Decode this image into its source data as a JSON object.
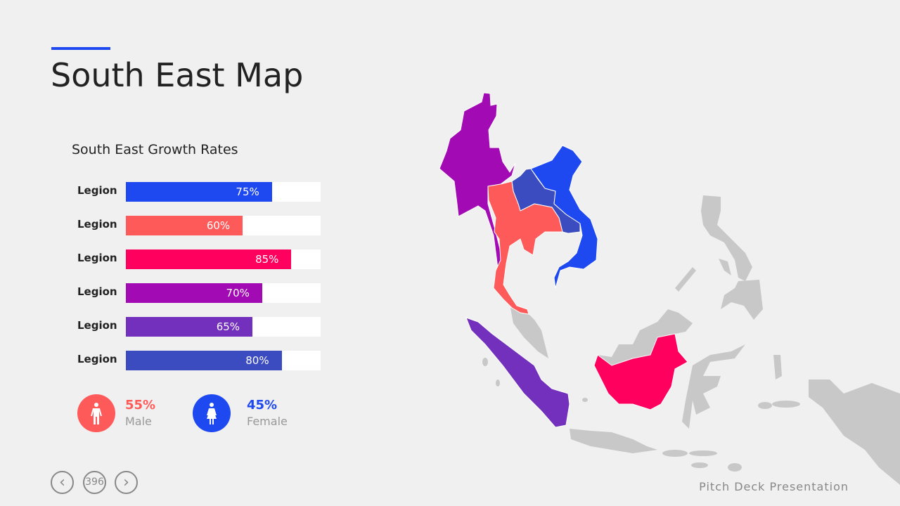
{
  "title": "South East Map",
  "subtitle": "South East  Growth Rates",
  "bars": [
    {
      "label": "Legion",
      "value": 75,
      "text": "75%",
      "color": "#1E48F0"
    },
    {
      "label": "Legion",
      "value": 60,
      "text": "60%",
      "color": "#FF5A5A"
    },
    {
      "label": "Legion",
      "value": 85,
      "text": "85%",
      "color": "#FF005E"
    },
    {
      "label": "Legion",
      "value": 70,
      "text": "70%",
      "color": "#A20AB4"
    },
    {
      "label": "Legion",
      "value": 65,
      "text": "65%",
      "color": "#7230BC"
    },
    {
      "label": "Legion",
      "value": 80,
      "text": "80%",
      "color": "#3B4CC0"
    }
  ],
  "gender": {
    "male": {
      "pct": "55%",
      "label": "Male",
      "color": "#FF5A5A",
      "icon": "male-icon"
    },
    "female": {
      "pct": "45%",
      "label": "Female",
      "color": "#1E48F0",
      "icon": "female-icon"
    }
  },
  "nav": {
    "prev": "‹",
    "page": "396",
    "next": "›"
  },
  "footer": "Pitch Deck Presentation",
  "map": {
    "colors": {
      "myanmar": "#A20AB4",
      "laos": "#3B4CC0",
      "vietnam": "#1E48F0",
      "thailand": "#FF5A5A",
      "sumatra": "#7230BC",
      "borneo": "#FF005E",
      "other": "#c8c8c8"
    }
  }
}
